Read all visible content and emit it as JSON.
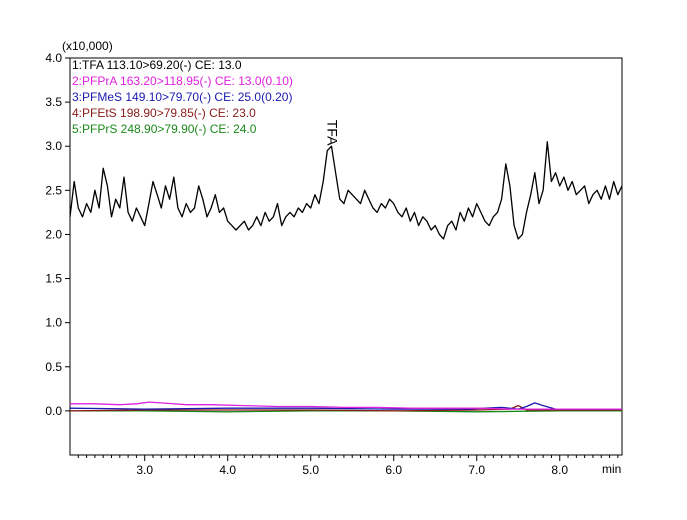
{
  "chart_data": {
    "type": "line",
    "y_multiplier_label": "(x10,000)",
    "x_unit_label": "min",
    "xlim": [
      2.1,
      8.75
    ],
    "ylim": [
      -0.5,
      4.0
    ],
    "x_ticks": [
      {
        "value": 3.0,
        "label": "3.0"
      },
      {
        "value": 4.0,
        "label": "4.0"
      },
      {
        "value": 5.0,
        "label": "5.0"
      },
      {
        "value": 6.0,
        "label": "6.0"
      },
      {
        "value": 7.0,
        "label": "7.0"
      },
      {
        "value": 8.0,
        "label": "8.0"
      }
    ],
    "y_ticks": [
      {
        "value": 4.0,
        "label": "4.0"
      },
      {
        "value": 3.5,
        "label": "3.5"
      },
      {
        "value": 3.0,
        "label": "3.0"
      },
      {
        "value": 2.5,
        "label": "2.5"
      },
      {
        "value": 2.0,
        "label": "2.0"
      },
      {
        "value": 1.5,
        "label": "1.5"
      },
      {
        "value": 1.0,
        "label": "1.0"
      },
      {
        "value": 0.5,
        "label": "0.5"
      },
      {
        "value": 0.0,
        "label": "0.0"
      }
    ],
    "legend": [
      {
        "label": "1:TFA 113.10>69.20(-) CE: 13.0",
        "color": "#000000"
      },
      {
        "label": "2:PFPrA 163.20>118.95(-) CE: 13.0(0.10)",
        "color": "#e020e0"
      },
      {
        "label": "3:PFMeS 149.10>79.70(-) CE: 25.0(0.20)",
        "color": "#1a1ab0"
      },
      {
        "label": "4:PFEtS 198.90>79.85(-) CE: 23.0",
        "color": "#8b1a1a"
      },
      {
        "label": "5:PFPrS 248.90>79.90(-) CE: 24.0",
        "color": "#1a8a1a"
      }
    ],
    "annotations": [
      {
        "text": "TFA",
        "x": 5.2,
        "y": 3.3,
        "rotation": 90
      }
    ],
    "series": [
      {
        "name": "1:TFA 113.10>69.20(-) CE: 13.0",
        "color": "#000000",
        "x": [
          2.1,
          2.15,
          2.2,
          2.25,
          2.3,
          2.35,
          2.4,
          2.45,
          2.5,
          2.55,
          2.6,
          2.65,
          2.7,
          2.75,
          2.8,
          2.85,
          2.9,
          2.95,
          3.0,
          3.05,
          3.1,
          3.15,
          3.2,
          3.25,
          3.3,
          3.35,
          3.4,
          3.45,
          3.5,
          3.55,
          3.6,
          3.65,
          3.7,
          3.75,
          3.8,
          3.85,
          3.9,
          3.95,
          4.0,
          4.05,
          4.1,
          4.15,
          4.2,
          4.25,
          4.3,
          4.35,
          4.4,
          4.45,
          4.5,
          4.55,
          4.6,
          4.65,
          4.7,
          4.75,
          4.8,
          4.85,
          4.9,
          4.95,
          5.0,
          5.05,
          5.1,
          5.15,
          5.2,
          5.25,
          5.3,
          5.35,
          5.4,
          5.45,
          5.5,
          5.55,
          5.6,
          5.65,
          5.7,
          5.75,
          5.8,
          5.85,
          5.9,
          5.95,
          6.0,
          6.05,
          6.1,
          6.15,
          6.2,
          6.25,
          6.3,
          6.35,
          6.4,
          6.45,
          6.5,
          6.55,
          6.6,
          6.65,
          6.7,
          6.75,
          6.8,
          6.85,
          6.9,
          6.95,
          7.0,
          7.05,
          7.1,
          7.15,
          7.2,
          7.25,
          7.3,
          7.35,
          7.4,
          7.45,
          7.5,
          7.55,
          7.6,
          7.65,
          7.7,
          7.75,
          7.8,
          7.85,
          7.9,
          7.95,
          8.0,
          8.05,
          8.1,
          8.15,
          8.2,
          8.25,
          8.3,
          8.35,
          8.4,
          8.45,
          8.5,
          8.55,
          8.6,
          8.65,
          8.7,
          8.75
        ],
        "y": [
          2.2,
          2.6,
          2.3,
          2.2,
          2.35,
          2.25,
          2.5,
          2.3,
          2.75,
          2.55,
          2.2,
          2.4,
          2.3,
          2.65,
          2.25,
          2.15,
          2.3,
          2.2,
          2.1,
          2.35,
          2.6,
          2.45,
          2.3,
          2.55,
          2.4,
          2.65,
          2.3,
          2.2,
          2.35,
          2.25,
          2.3,
          2.55,
          2.4,
          2.2,
          2.3,
          2.45,
          2.25,
          2.3,
          2.15,
          2.1,
          2.05,
          2.1,
          2.15,
          2.05,
          2.1,
          2.2,
          2.1,
          2.25,
          2.15,
          2.2,
          2.35,
          2.1,
          2.2,
          2.25,
          2.2,
          2.3,
          2.25,
          2.35,
          2.3,
          2.45,
          2.35,
          2.6,
          2.95,
          3.0,
          2.7,
          2.4,
          2.35,
          2.5,
          2.45,
          2.4,
          2.35,
          2.5,
          2.4,
          2.3,
          2.25,
          2.35,
          2.3,
          2.4,
          2.35,
          2.25,
          2.2,
          2.3,
          2.15,
          2.25,
          2.1,
          2.2,
          2.15,
          2.05,
          2.1,
          2.0,
          1.95,
          2.1,
          2.15,
          2.05,
          2.25,
          2.15,
          2.3,
          2.2,
          2.35,
          2.25,
          2.15,
          2.1,
          2.2,
          2.25,
          2.4,
          2.8,
          2.55,
          2.1,
          1.95,
          2.0,
          2.25,
          2.45,
          2.7,
          2.35,
          2.5,
          3.05,
          2.6,
          2.7,
          2.55,
          2.65,
          2.5,
          2.6,
          2.45,
          2.5,
          2.55,
          2.35,
          2.45,
          2.5,
          2.4,
          2.55,
          2.4,
          2.6,
          2.45,
          2.55
        ]
      },
      {
        "name": "2:PFPrA 163.20>118.95(-) CE: 13.0(0.10)",
        "color": "#e020e0",
        "x": [
          2.1,
          2.4,
          2.7,
          2.9,
          3.05,
          3.2,
          3.5,
          3.8,
          4.2,
          4.6,
          5.0,
          5.4,
          5.8,
          6.2,
          6.6,
          7.0,
          7.4,
          7.8,
          8.2,
          8.75
        ],
        "y": [
          0.08,
          0.08,
          0.07,
          0.08,
          0.1,
          0.09,
          0.07,
          0.07,
          0.06,
          0.05,
          0.05,
          0.04,
          0.04,
          0.03,
          0.03,
          0.03,
          0.02,
          0.02,
          0.02,
          0.02
        ]
      },
      {
        "name": "3:PFMeS 149.10>79.70(-) CE: 25.0(0.20)",
        "color": "#1a1ab0",
        "x": [
          2.1,
          3.0,
          4.0,
          5.0,
          6.0,
          6.9,
          7.1,
          7.3,
          7.5,
          7.6,
          7.7,
          7.8,
          7.95,
          8.2,
          8.75
        ],
        "y": [
          0.03,
          0.02,
          0.03,
          0.03,
          0.02,
          0.02,
          0.03,
          0.04,
          0.02,
          0.05,
          0.09,
          0.06,
          0.02,
          0.02,
          0.02
        ]
      },
      {
        "name": "4:PFEtS 198.90>79.85(-) CE: 23.0",
        "color": "#8b1a1a",
        "x": [
          2.1,
          3.0,
          4.0,
          5.0,
          6.0,
          7.0,
          7.4,
          7.5,
          7.6,
          8.0,
          8.75
        ],
        "y": [
          0.0,
          0.01,
          0.01,
          0.01,
          0.0,
          0.01,
          0.02,
          0.06,
          0.01,
          0.01,
          0.01
        ]
      },
      {
        "name": "5:PFPrS 248.90>79.90(-) CE: 24.0",
        "color": "#1a8a1a",
        "x": [
          2.1,
          3.0,
          4.0,
          5.0,
          6.0,
          7.0,
          8.0,
          8.75
        ],
        "y": [
          0.0,
          0.0,
          -0.01,
          0.0,
          0.0,
          -0.01,
          0.0,
          0.0
        ]
      }
    ]
  }
}
